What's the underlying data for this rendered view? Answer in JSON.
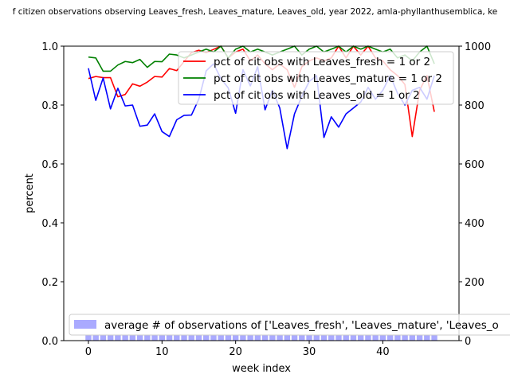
{
  "chart_data": {
    "type": "line",
    "title": "f citizen observations observing Leaves_fresh, Leaves_mature, Leaves_old, year 2022, amla-phyllanthusemblica, ke",
    "xlabel": "week index",
    "ylabel": "percent",
    "xlim": [
      -3.35,
      50.35
    ],
    "ylim": [
      0,
      1
    ],
    "y2lim": [
      0,
      1000
    ],
    "x_ticks": [
      0,
      10,
      20,
      30,
      40
    ],
    "y_ticks": [
      0.0,
      0.2,
      0.4,
      0.6,
      0.8,
      1.0
    ],
    "y_tick_labels": [
      "0.0",
      "0.2",
      "0.4",
      "0.6",
      "0.8",
      "1.0"
    ],
    "y2_ticks": [
      0,
      200,
      400,
      600,
      800,
      1000
    ],
    "series": [
      {
        "name": "pct of cit obs with Leaves_fresh = 1 or 2",
        "color": "#ff0000",
        "values": [
          0.89,
          0.897,
          0.893,
          0.893,
          0.828,
          0.836,
          0.872,
          0.864,
          0.878,
          0.897,
          0.895,
          0.924,
          0.917,
          0.948,
          0.978,
          0.986,
          0.978,
          0.989,
          1.0,
          0.96,
          0.98,
          0.99,
          0.95,
          0.97,
          0.94,
          0.92,
          0.94,
          0.92,
          0.86,
          0.93,
          0.95,
          0.96,
          0.95,
          0.96,
          1.0,
          0.96,
          1.0,
          0.97,
          1.0,
          0.96,
          0.95,
          0.92,
          0.9,
          0.87,
          0.693,
          0.85,
          0.9,
          0.777
        ]
      },
      {
        "name": "pct of cit obs with Leaves_mature = 1 or 2",
        "color": "#008000",
        "values": [
          0.963,
          0.96,
          0.915,
          0.915,
          0.936,
          0.948,
          0.944,
          0.955,
          0.928,
          0.948,
          0.947,
          0.973,
          0.97,
          0.96,
          0.97,
          0.98,
          0.99,
          0.98,
          1.0,
          0.96,
          0.99,
          1.0,
          0.98,
          0.99,
          0.98,
          0.97,
          0.98,
          0.99,
          1.0,
          0.97,
          0.99,
          1.0,
          0.98,
          0.99,
          1.0,
          0.98,
          1.0,
          0.99,
          1.0,
          0.99,
          0.98,
          0.99,
          0.96,
          0.97,
          0.95,
          0.98,
          1.0,
          0.94
        ]
      },
      {
        "name": "pct of cit obs with Leaves_old = 1 or 2",
        "color": "#0000ff",
        "values": [
          0.925,
          0.816,
          0.892,
          0.787,
          0.857,
          0.797,
          0.8,
          0.728,
          0.732,
          0.77,
          0.71,
          0.693,
          0.75,
          0.765,
          0.766,
          0.82,
          0.916,
          0.94,
          0.89,
          0.858,
          0.772,
          0.92,
          0.865,
          0.93,
          0.784,
          0.85,
          0.79,
          0.652,
          0.77,
          0.83,
          0.88,
          0.9,
          0.69,
          0.76,
          0.725,
          0.77,
          0.79,
          0.81,
          0.86,
          0.82,
          0.85,
          0.9,
          0.84,
          0.8,
          0.85,
          0.86,
          0.82,
          0.9
        ]
      }
    ],
    "bar_series": {
      "name": "average # of observations of ['Leaves_fresh', 'Leaves_mature', 'Leaves_o",
      "color": "#aaaaff",
      "axis": "y2",
      "values": [
        20,
        20,
        20,
        20,
        20,
        20,
        20,
        20,
        20,
        20,
        20,
        20,
        20,
        20,
        20,
        20,
        20,
        20,
        20,
        20,
        20,
        20,
        20,
        20,
        20,
        20,
        20,
        20,
        20,
        20,
        20,
        20,
        20,
        20,
        20,
        20,
        20,
        20,
        20,
        20,
        20,
        20,
        20,
        20,
        20,
        20,
        20,
        20
      ]
    },
    "legend_position": "upper right",
    "bar_legend_position": "lower left"
  }
}
